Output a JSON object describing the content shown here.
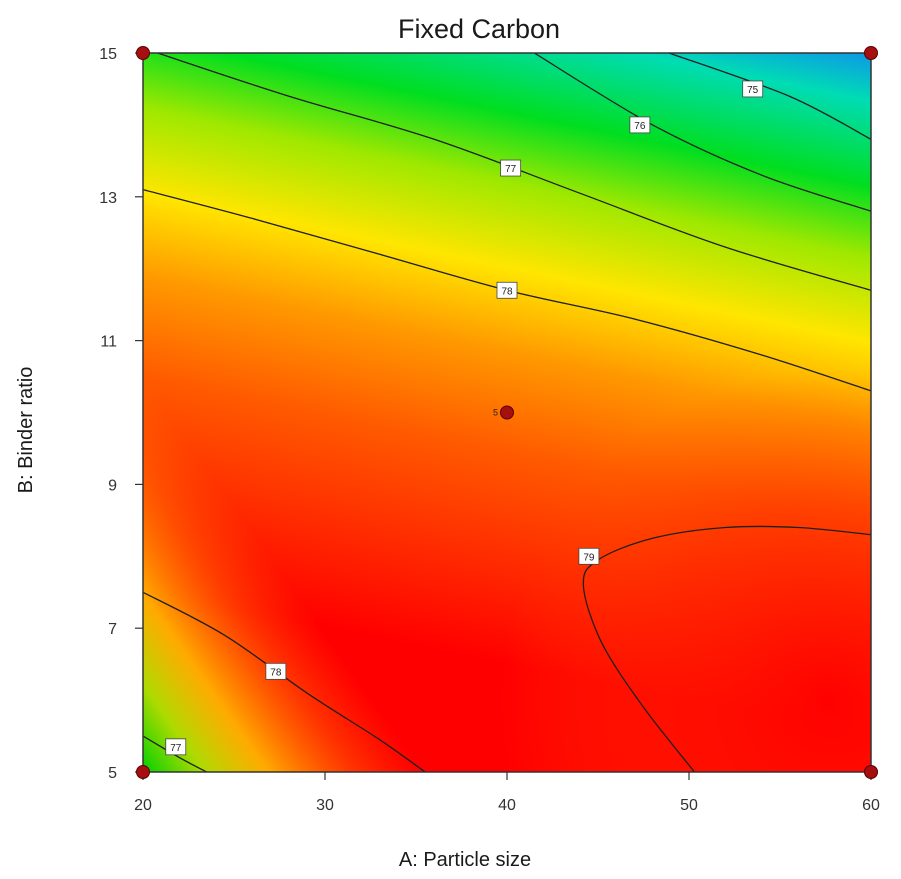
{
  "chart_data": {
    "type": "contour",
    "title": "Fixed Carbon",
    "xlabel": "A: Particle size",
    "ylabel": "B: Binder ratio",
    "xlim": [
      20,
      60
    ],
    "ylim": [
      5,
      15
    ],
    "xticks": [
      "20",
      "30",
      "40",
      "50",
      "60"
    ],
    "yticks": [
      "5",
      "7",
      "9",
      "11",
      "13",
      "15"
    ],
    "colormap": [
      "#ff0000",
      "#ff7f00",
      "#ffff00",
      "#00e000",
      "#00e0ff",
      "#0060ff"
    ],
    "contours": [
      {
        "label": "75",
        "points": [
          [
            48.9,
            15
          ],
          [
            55.5,
            14.4
          ],
          [
            60,
            13.8
          ]
        ],
        "label_at": [
          53.5,
          14.5
        ]
      },
      {
        "label": "76",
        "points": [
          [
            41.5,
            15
          ],
          [
            48,
            14
          ],
          [
            54,
            13.3
          ],
          [
            60,
            12.8
          ]
        ],
        "label_at": [
          47.3,
          14.0
        ]
      },
      {
        "label": "77",
        "points": [
          [
            20.8,
            15
          ],
          [
            28,
            14.4
          ],
          [
            36,
            13.8
          ],
          [
            44,
            13.05
          ],
          [
            52,
            12.3
          ],
          [
            60,
            11.7
          ]
        ],
        "label_at": [
          40.2,
          13.4
        ]
      },
      {
        "label": "78",
        "points": [
          [
            20,
            13.1
          ],
          [
            26,
            12.7
          ],
          [
            33,
            12.2
          ],
          [
            40,
            11.7
          ],
          [
            47,
            11.3
          ],
          [
            54,
            10.8
          ],
          [
            60,
            10.3
          ]
        ],
        "label_at": [
          40,
          11.7
        ]
      },
      {
        "label": "79",
        "points": [
          [
            50.3,
            5
          ],
          [
            47.5,
            5.9
          ],
          [
            45.2,
            6.8
          ],
          [
            44.2,
            7.6
          ],
          [
            45,
            7.95
          ],
          [
            48,
            8.25
          ],
          [
            52,
            8.4
          ],
          [
            56,
            8.4
          ],
          [
            60,
            8.3
          ]
        ],
        "label_at": [
          44.5,
          8.0
        ]
      },
      {
        "label": "78",
        "points": [
          [
            20,
            7.5
          ],
          [
            24.5,
            6.9
          ],
          [
            29,
            6.1
          ],
          [
            33,
            5.45
          ],
          [
            35.5,
            5
          ]
        ],
        "label_at": [
          27.3,
          6.4
        ]
      },
      {
        "label": "77",
        "points": [
          [
            20,
            5.5
          ],
          [
            22,
            5.2
          ],
          [
            23.5,
            5
          ]
        ],
        "label_at": [
          21.8,
          5.35
        ]
      }
    ],
    "design_points": [
      {
        "x": 20,
        "y": 15,
        "label": ""
      },
      {
        "x": 60,
        "y": 15,
        "label": ""
      },
      {
        "x": 40,
        "y": 10,
        "label": "5"
      },
      {
        "x": 20,
        "y": 5,
        "label": ""
      },
      {
        "x": 60,
        "y": 5,
        "label": ""
      }
    ],
    "grid": false,
    "legend": "none"
  }
}
